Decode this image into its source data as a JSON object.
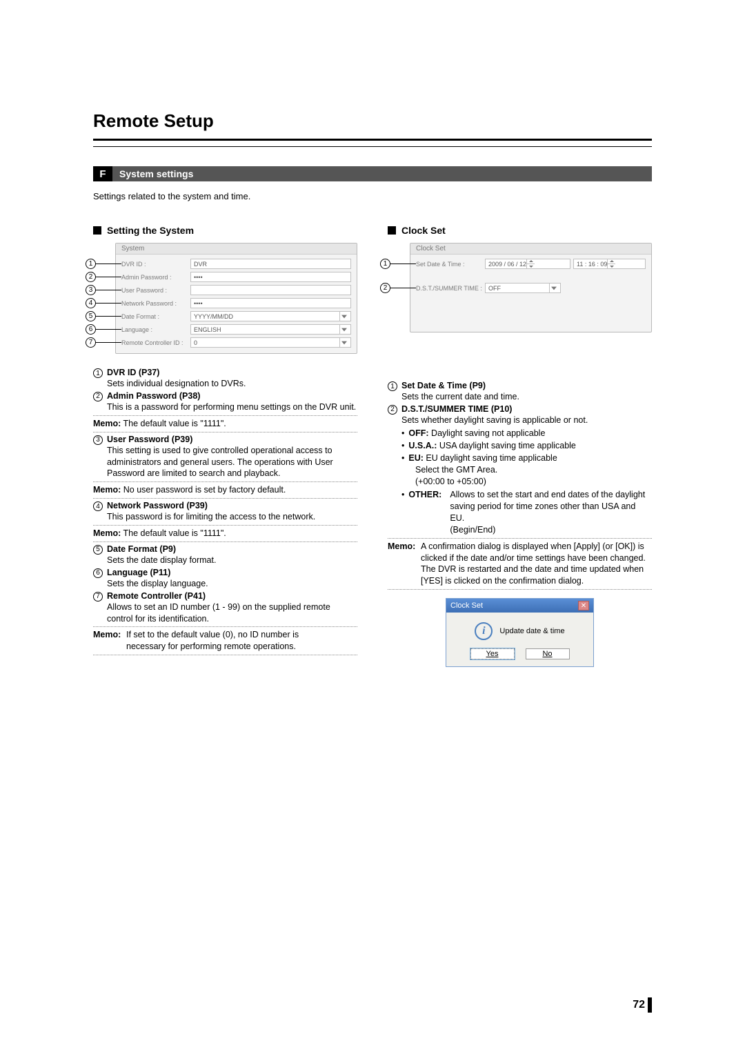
{
  "page": {
    "title": "Remote Setup",
    "section_letter": "F",
    "section_title": "System settings",
    "intro": "Settings related to the system and time.",
    "page_number": "72"
  },
  "left": {
    "heading": "Setting the System",
    "panel_title": "System",
    "fields": [
      {
        "n": "1",
        "label": "DVR ID :",
        "value": "DVR",
        "type": "text"
      },
      {
        "n": "2",
        "label": "Admin Password :",
        "value": "••••",
        "type": "text"
      },
      {
        "n": "3",
        "label": "User Password :",
        "value": "",
        "type": "text"
      },
      {
        "n": "4",
        "label": "Network Password :",
        "value": "••••",
        "type": "text"
      },
      {
        "n": "5",
        "label": "Date Format :",
        "value": "YYYY/MM/DD",
        "type": "combo"
      },
      {
        "n": "6",
        "label": "Language :",
        "value": "ENGLISH",
        "type": "combo"
      },
      {
        "n": "7",
        "label": "Remote Controller ID :",
        "value": "0",
        "type": "combo"
      }
    ],
    "items": {
      "i1_title": "DVR ID (P37)",
      "i1_body": "Sets individual designation to DVRs.",
      "i2_title": "Admin Password (P38)",
      "i2_body": "This is a password for performing menu settings on the DVR unit.",
      "memo1": "The default value is \"1111\".",
      "i3_title": "User Password (P39)",
      "i3_body": "This setting is used to give controlled operational access to administrators and general users. The operations with User Password are limited to search and playback.",
      "memo2": "No user password is set by factory default.",
      "i4_title": "Network Password (P39)",
      "i4_body": "This password is for limiting the access to the network.",
      "memo3": "The default value is \"1111\".",
      "i5_title": "Date Format (P9)",
      "i5_body": "Sets the date display format.",
      "i6_title": "Language (P11)",
      "i6_body": "Sets the display language.",
      "i7_title": "Remote Controller (P41)",
      "i7_body": "Allows to set an ID number (1 - 99) on the supplied remote control for its identification.",
      "memo4a": "If set to the default value (0), no ID number is",
      "memo4b": "necessary for performing remote operations."
    }
  },
  "right": {
    "heading": "Clock Set",
    "panel_title": "Clock Set",
    "fields": [
      {
        "n": "1",
        "label": "Set Date & Time :",
        "date": "2009 / 06 / 12",
        "time": "11 : 16 : 09"
      },
      {
        "n": "2",
        "label": "D.S.T./SUMMER TIME :",
        "value": "OFF"
      }
    ],
    "items": {
      "i1_title": "Set Date & Time (P9)",
      "i1_body": "Sets the current date and time.",
      "i2_title": "D.S.T./SUMMER TIME (P10)",
      "i2_body": "Sets whether daylight saving is applicable or not.",
      "b_off_l": "OFF:",
      "b_off_v": " Daylight saving not applicable",
      "b_usa_l": "U.S.A.:",
      "b_usa_v": " USA daylight saving time applicable",
      "b_eu_l": "EU:",
      "b_eu_v": " EU daylight saving time applicable",
      "b_eu_s1": "Select the GMT Area.",
      "b_eu_s2": "(+00:00 to +05:00)",
      "b_other_l": "OTHER:",
      "b_other_v1": "Allows to set the start and end dates of the daylight saving period for time zones other than USA and EU.",
      "b_other_v2": "(Begin/End)",
      "memo_a": "A confirmation dialog is displayed when [Apply] (or [OK]) is clicked if the date and/or time settings have been changed.",
      "memo_b": "The DVR is restarted and the date and time updated when [YES] is clicked on the confirmation dialog."
    },
    "dialog": {
      "title": "Clock Set",
      "msg": "Update date & time",
      "yes": "Yes",
      "no": "No"
    }
  },
  "memo_label": "Memo:"
}
